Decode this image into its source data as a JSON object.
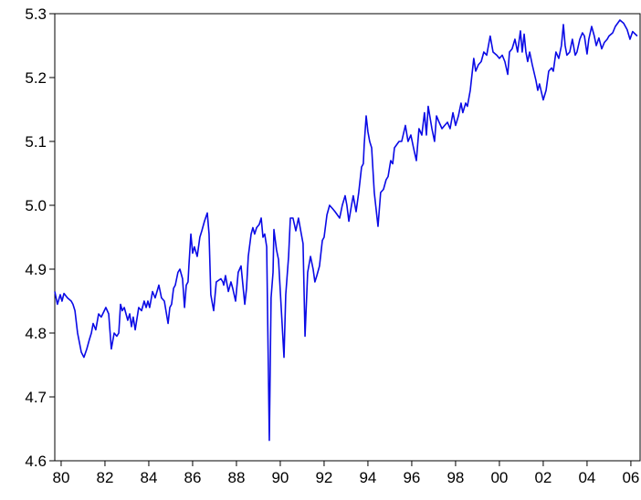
{
  "chart_data": {
    "type": "line",
    "x": [
      1979.71,
      1979.83,
      1979.96,
      1980.04,
      1980.13,
      1980.29,
      1980.46,
      1980.54,
      1980.63,
      1980.75,
      1980.92,
      1981.04,
      1981.17,
      1981.29,
      1981.38,
      1981.46,
      1981.58,
      1981.71,
      1981.83,
      1982.04,
      1982.17,
      1982.29,
      1982.42,
      1982.54,
      1982.63,
      1982.71,
      1982.79,
      1982.88,
      1983.04,
      1983.13,
      1983.21,
      1983.29,
      1983.38,
      1983.54,
      1983.67,
      1983.79,
      1983.88,
      1983.96,
      1984.04,
      1984.17,
      1984.29,
      1984.46,
      1984.58,
      1984.71,
      1984.88,
      1984.96,
      1985.04,
      1985.13,
      1985.21,
      1985.33,
      1985.42,
      1985.54,
      1985.63,
      1985.71,
      1985.79,
      1985.83,
      1985.92,
      1986.0,
      1986.08,
      1986.21,
      1986.33,
      1986.42,
      1986.54,
      1986.67,
      1986.75,
      1986.83,
      1986.96,
      1987.08,
      1987.29,
      1987.38,
      1987.42,
      1987.5,
      1987.63,
      1987.75,
      1987.83,
      1987.96,
      1988.08,
      1988.21,
      1988.38,
      1988.46,
      1988.54,
      1988.67,
      1988.75,
      1988.83,
      1988.92,
      1989.04,
      1989.13,
      1989.21,
      1989.29,
      1989.38,
      1989.5,
      1989.58,
      1989.67,
      1989.71,
      1989.83,
      1989.92,
      1990.17,
      1990.25,
      1990.38,
      1990.46,
      1990.58,
      1990.71,
      1990.83,
      1990.96,
      1991.04,
      1991.13,
      1991.25,
      1991.38,
      1991.5,
      1991.58,
      1991.67,
      1991.79,
      1991.92,
      1992.0,
      1992.13,
      1992.25,
      1992.38,
      1992.5,
      1992.71,
      1992.83,
      1992.96,
      1993.04,
      1993.13,
      1993.25,
      1993.33,
      1993.46,
      1993.58,
      1993.71,
      1993.79,
      1993.83,
      1993.92,
      1994.0,
      1994.08,
      1994.17,
      1994.29,
      1994.46,
      1994.58,
      1994.71,
      1994.83,
      1994.92,
      1995.04,
      1995.13,
      1995.21,
      1995.42,
      1995.54,
      1995.71,
      1995.83,
      1995.96,
      1996.08,
      1996.21,
      1996.33,
      1996.46,
      1996.58,
      1996.67,
      1996.75,
      1996.92,
      1997.04,
      1997.13,
      1997.25,
      1997.38,
      1997.5,
      1997.63,
      1997.75,
      1997.88,
      1998.0,
      1998.13,
      1998.25,
      1998.33,
      1998.46,
      1998.54,
      1998.67,
      1998.83,
      1998.92,
      1999.04,
      1999.17,
      1999.29,
      1999.42,
      1999.58,
      1999.71,
      1999.88,
      2000.0,
      2000.13,
      2000.25,
      2000.38,
      2000.46,
      2000.58,
      2000.71,
      2000.83,
      2000.96,
      2001.04,
      2001.13,
      2001.21,
      2001.29,
      2001.38,
      2001.5,
      2001.67,
      2001.75,
      2001.83,
      2002.0,
      2002.13,
      2002.25,
      2002.38,
      2002.46,
      2002.58,
      2002.71,
      2002.83,
      2002.92,
      2003.0,
      2003.08,
      2003.21,
      2003.33,
      2003.46,
      2003.54,
      2003.67,
      2003.79,
      2003.88,
      2004.0,
      2004.08,
      2004.21,
      2004.33,
      2004.42,
      2004.54,
      2004.67,
      2004.79,
      2004.92,
      2005.0,
      2005.17,
      2005.29,
      2005.5,
      2005.67,
      2005.83,
      2005.96,
      2006.08,
      2006.29
    ],
    "series": [
      {
        "color": "#0a0ae6",
        "values": [
          4.865,
          4.845,
          4.86,
          4.85,
          4.862,
          4.855,
          4.85,
          4.845,
          4.835,
          4.8,
          4.77,
          4.762,
          4.775,
          4.79,
          4.8,
          4.815,
          4.805,
          4.83,
          4.825,
          4.84,
          4.83,
          4.775,
          4.8,
          4.795,
          4.8,
          4.845,
          4.835,
          4.84,
          4.82,
          4.83,
          4.81,
          4.825,
          4.805,
          4.84,
          4.835,
          4.85,
          4.84,
          4.85,
          4.84,
          4.865,
          4.855,
          4.875,
          4.855,
          4.85,
          4.815,
          4.84,
          4.845,
          4.87,
          4.875,
          4.895,
          4.9,
          4.885,
          4.84,
          4.875,
          4.88,
          4.905,
          4.955,
          4.925,
          4.935,
          4.92,
          4.95,
          4.96,
          4.975,
          4.988,
          4.955,
          4.86,
          4.835,
          4.88,
          4.885,
          4.88,
          4.875,
          4.89,
          4.865,
          4.88,
          4.87,
          4.85,
          4.895,
          4.905,
          4.845,
          4.87,
          4.92,
          4.955,
          4.965,
          4.955,
          4.965,
          4.97,
          4.98,
          4.95,
          4.955,
          4.935,
          4.632,
          4.855,
          4.895,
          4.962,
          4.93,
          4.915,
          4.762,
          4.86,
          4.92,
          4.98,
          4.98,
          4.96,
          4.98,
          4.955,
          4.94,
          4.795,
          4.895,
          4.92,
          4.9,
          4.88,
          4.89,
          4.905,
          4.945,
          4.95,
          4.985,
          5.0,
          4.995,
          4.99,
          4.98,
          5.0,
          5.015,
          5.0,
          4.975,
          5.0,
          5.015,
          4.99,
          5.02,
          5.06,
          5.065,
          5.095,
          5.14,
          5.115,
          5.1,
          5.09,
          5.02,
          4.967,
          5.02,
          5.025,
          5.04,
          5.045,
          5.07,
          5.065,
          5.09,
          5.1,
          5.1,
          5.125,
          5.1,
          5.11,
          5.09,
          5.07,
          5.12,
          5.11,
          5.145,
          5.11,
          5.155,
          5.12,
          5.1,
          5.14,
          5.13,
          5.12,
          5.125,
          5.13,
          5.12,
          5.145,
          5.125,
          5.14,
          5.16,
          5.145,
          5.16,
          5.155,
          5.18,
          5.23,
          5.21,
          5.22,
          5.225,
          5.24,
          5.235,
          5.265,
          5.24,
          5.235,
          5.23,
          5.235,
          5.225,
          5.205,
          5.24,
          5.245,
          5.26,
          5.24,
          5.273,
          5.24,
          5.268,
          5.24,
          5.225,
          5.24,
          5.22,
          5.195,
          5.18,
          5.19,
          5.165,
          5.18,
          5.21,
          5.215,
          5.21,
          5.24,
          5.23,
          5.25,
          5.283,
          5.25,
          5.235,
          5.24,
          5.26,
          5.235,
          5.24,
          5.26,
          5.27,
          5.265,
          5.237,
          5.26,
          5.28,
          5.265,
          5.25,
          5.262,
          5.245,
          5.255,
          5.26,
          5.265,
          5.27,
          5.28,
          5.29,
          5.285,
          5.275,
          5.26,
          5.272,
          5.265
        ]
      }
    ],
    "xlim": [
      1979.71,
      2006.42
    ],
    "xticks": [
      {
        "value": 1980,
        "label": "80"
      },
      {
        "value": 1982,
        "label": "82"
      },
      {
        "value": 1984,
        "label": "84"
      },
      {
        "value": 1986,
        "label": "86"
      },
      {
        "value": 1988,
        "label": "88"
      },
      {
        "value": 1990,
        "label": "90"
      },
      {
        "value": 1992,
        "label": "92"
      },
      {
        "value": 1994,
        "label": "94"
      },
      {
        "value": 1996,
        "label": "96"
      },
      {
        "value": 1998,
        "label": "98"
      },
      {
        "value": 2000,
        "label": "00"
      },
      {
        "value": 2002,
        "label": "02"
      },
      {
        "value": 2004,
        "label": "04"
      },
      {
        "value": 2006,
        "label": "06"
      }
    ],
    "ylim": [
      4.6,
      5.3
    ],
    "yticks": [
      4.6,
      4.7,
      {
        "value": 4.8,
        "label": "4.8"
      },
      4.9,
      {
        "value": 5,
        "label": "5.0"
      },
      5.1,
      5.2,
      5.3
    ],
    "grid": false
  }
}
